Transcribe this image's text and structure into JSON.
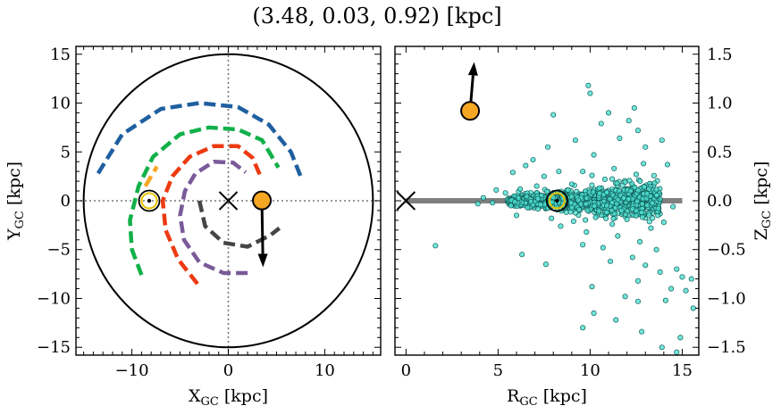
{
  "title": "(3.48, 0.03, 0.92) [kpc]",
  "chart_data": [
    {
      "type": "scatter",
      "panel": "left",
      "xlabel": "X",
      "xlabel_sub": "GC",
      "xlabel_unit": " [kpc]",
      "ylabel": "Y",
      "ylabel_sub": "GC",
      "ylabel_unit": " [kpc]",
      "xlim": [
        -15.8,
        15.8
      ],
      "ylim": [
        -15.8,
        15.8
      ],
      "xticks": [
        -10,
        0,
        10
      ],
      "xtick_labels": [
        "−10",
        "0",
        "10"
      ],
      "yticks": [
        -15,
        -10,
        -5,
        0,
        5,
        10,
        15
      ],
      "ytick_labels": [
        "−15",
        "−10",
        "−5",
        "0",
        "5",
        "10",
        "15"
      ],
      "disk_radius": 15,
      "galactic_center": [
        0,
        0
      ],
      "sun": [
        -8.2,
        0
      ],
      "object": {
        "x": 3.48,
        "y": 0.03,
        "color": "#f5a623"
      },
      "velocity_arrow_tip": [
        3.6,
        -6.8
      ],
      "spiral_arms": [
        {
          "color": "#1f5fa0",
          "points": [
            [
              -13.5,
              2.8
            ],
            [
              -11,
              6.8
            ],
            [
              -7,
              9.4
            ],
            [
              -3,
              10.0
            ],
            [
              1,
              9.6
            ],
            [
              4.2,
              7.8
            ],
            [
              6.5,
              5.0
            ],
            [
              7.5,
              2.5
            ]
          ]
        },
        {
          "color": "#12b04a",
          "points": [
            [
              -9,
              -7.6
            ],
            [
              -10,
              -5
            ],
            [
              -10.2,
              -2
            ],
            [
              -9.3,
              1.5
            ],
            [
              -7.8,
              4.5
            ],
            [
              -5,
              6.8
            ],
            [
              -2,
              7.5
            ],
            [
              1,
              7.3
            ],
            [
              3.5,
              6.2
            ],
            [
              5.2,
              3.4
            ]
          ]
        },
        {
          "color": "#ec3a12",
          "points": [
            [
              -3.2,
              -8.5
            ],
            [
              -5.2,
              -6
            ],
            [
              -6.5,
              -3
            ],
            [
              -6.8,
              0
            ],
            [
              -5.8,
              2.5
            ],
            [
              -4,
              4.5
            ],
            [
              -1.5,
              5.6
            ],
            [
              1,
              5.6
            ],
            [
              2.5,
              4.4
            ],
            [
              3.3,
              2.6
            ]
          ]
        },
        {
          "color": "#7a5a99",
          "points": [
            [
              2,
              -7.4
            ],
            [
              -0.5,
              -7.4
            ],
            [
              -3,
              -6.3
            ],
            [
              -4.6,
              -4
            ],
            [
              -5,
              -1.5
            ],
            [
              -4.5,
              1
            ],
            [
              -3.4,
              2.8
            ],
            [
              -1.5,
              4
            ],
            [
              0.5,
              3.9
            ],
            [
              1.8,
              2.9
            ]
          ]
        },
        {
          "color": "#454545",
          "points": [
            [
              -3,
              0
            ],
            [
              -2.4,
              -2.6
            ],
            [
              -0.5,
              -4.3
            ],
            [
              2,
              -4.7
            ],
            [
              4.4,
              -3.5
            ],
            [
              5.3,
              -2.8
            ]
          ]
        },
        {
          "color": "#f5a623",
          "points": [
            [
              -8.6,
              1.5
            ],
            [
              -7.4,
              3.5
            ]
          ]
        }
      ]
    },
    {
      "type": "scatter",
      "panel": "right",
      "xlabel": "R",
      "xlabel_sub": "GC",
      "xlabel_unit": " [kpc]",
      "ylabel": "Z",
      "ylabel_sub": "GC",
      "ylabel_unit": " [kpc]",
      "xlim": [
        -0.6,
        15.9
      ],
      "ylim": [
        -1.58,
        1.58
      ],
      "xticks": [
        0,
        5,
        10,
        15
      ],
      "xtick_labels": [
        "0",
        "5",
        "10",
        "15"
      ],
      "yticks": [
        -1.5,
        -1.0,
        -0.5,
        0.0,
        0.5,
        1.0,
        1.5
      ],
      "ytick_labels": [
        "−1.5",
        "−1.0",
        "−0.5",
        "0.0",
        "0.5",
        "1.0",
        "1.5"
      ],
      "galactic_center": [
        0,
        0
      ],
      "sun": [
        8.2,
        0
      ],
      "disk_line_x": [
        0,
        15
      ],
      "object": {
        "x": 3.48,
        "y": 0.92,
        "color": "#f5a623"
      },
      "velocity_arrow_tip": [
        3.7,
        1.42
      ],
      "star_color": "#4fe0d2",
      "stars": [
        [
          9.9,
          1.18
        ],
        [
          10.0,
          1.1
        ],
        [
          12.4,
          0.95
        ],
        [
          11.0,
          0.9
        ],
        [
          8.0,
          0.88
        ],
        [
          12.1,
          0.82
        ],
        [
          10.6,
          0.79
        ],
        [
          7.7,
          0.55
        ],
        [
          12.6,
          0.72
        ],
        [
          13.9,
          0.62
        ],
        [
          13.0,
          0.55
        ],
        [
          14.2,
          0.37
        ],
        [
          6.5,
          0.36
        ],
        [
          5.8,
          0.29
        ],
        [
          6.9,
          0.42
        ],
        [
          9.2,
          0.62
        ],
        [
          11.6,
          0.64
        ],
        [
          10.2,
          0.47
        ],
        [
          12.9,
          0.38
        ],
        [
          11.3,
          0.33
        ],
        [
          10.8,
          0.22
        ],
        [
          7.5,
          0.25
        ],
        [
          8.3,
          0.3
        ],
        [
          9.6,
          0.3
        ],
        [
          12.5,
          0.27
        ],
        [
          10.1,
          0.26
        ],
        [
          11.9,
          0.19
        ],
        [
          13.5,
          0.18
        ],
        [
          7.1,
          0.15
        ],
        [
          9.0,
          0.17
        ],
        [
          4.9,
          0.11
        ],
        [
          5.4,
          0.08
        ],
        [
          6.2,
          0.12
        ],
        [
          8.8,
          0.11
        ],
        [
          10.5,
          0.13
        ],
        [
          12.2,
          0.1
        ],
        [
          13.1,
          0.07
        ],
        [
          4.2,
          0.03
        ],
        [
          4.7,
          -0.02
        ],
        [
          3.9,
          -0.03
        ],
        [
          5.7,
          -0.05
        ],
        [
          6.6,
          -0.07
        ],
        [
          7.3,
          -0.04
        ],
        [
          8.6,
          -0.06
        ],
        [
          9.4,
          -0.09
        ],
        [
          10.9,
          -0.05
        ],
        [
          11.7,
          -0.1
        ],
        [
          12.8,
          -0.12
        ],
        [
          13.7,
          -0.08
        ],
        [
          14.5,
          -0.06
        ],
        [
          6.0,
          -0.15
        ],
        [
          7.9,
          -0.18
        ],
        [
          9.1,
          -0.21
        ],
        [
          10.3,
          -0.17
        ],
        [
          11.2,
          -0.24
        ],
        [
          12.0,
          -0.19
        ],
        [
          13.3,
          -0.28
        ],
        [
          14.0,
          -0.22
        ],
        [
          8.4,
          -0.26
        ],
        [
          9.8,
          -0.32
        ],
        [
          11.5,
          -0.36
        ],
        [
          12.7,
          -0.42
        ],
        [
          13.6,
          -0.5
        ],
        [
          9.6,
          -0.45
        ],
        [
          10.7,
          -0.48
        ],
        [
          12.3,
          -0.58
        ],
        [
          11.1,
          -0.62
        ],
        [
          6.3,
          -0.55
        ],
        [
          7.6,
          -0.65
        ],
        [
          13.0,
          -0.66
        ],
        [
          14.7,
          -0.7
        ],
        [
          15.0,
          -0.78
        ],
        [
          13.8,
          -0.73
        ],
        [
          12.6,
          -0.82
        ],
        [
          10.1,
          -0.88
        ],
        [
          14.4,
          -0.9
        ],
        [
          15.2,
          -0.92
        ],
        [
          11.9,
          -0.98
        ],
        [
          14.1,
          -1.02
        ],
        [
          12.6,
          -1.03
        ],
        [
          15.6,
          -1.1
        ],
        [
          10.2,
          -1.15
        ],
        [
          11.4,
          -1.22
        ],
        [
          9.6,
          -1.3
        ],
        [
          12.8,
          -1.34
        ],
        [
          14.9,
          -1.4
        ],
        [
          13.9,
          -1.5
        ],
        [
          14.7,
          -1.55
        ],
        [
          1.6,
          -0.46
        ],
        [
          15.5,
          -0.8
        ]
      ]
    }
  ]
}
